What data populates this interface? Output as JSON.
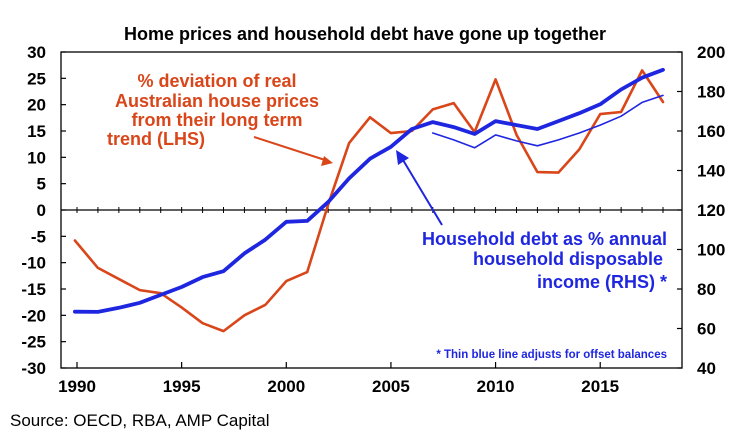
{
  "title": "Home prices and household debt have gone up together",
  "source": "Source: OECD, RBA, AMP Capital",
  "colors": {
    "red": "#D9461A",
    "blue": "#1F26E0",
    "axis": "#000000"
  },
  "chart_data": {
    "type": "line",
    "xlim": [
      1990,
      2018
    ],
    "x_ticks": [
      1990,
      1995,
      2000,
      2005,
      2010,
      2015
    ],
    "y_left": {
      "range": [
        -30,
        30
      ],
      "ticks": [
        -30,
        -25,
        -20,
        -15,
        -10,
        -5,
        0,
        5,
        10,
        15,
        20,
        25,
        30
      ]
    },
    "y_right": {
      "range": [
        40,
        200
      ],
      "ticks": [
        40,
        60,
        80,
        100,
        120,
        140,
        160,
        180,
        200
      ]
    },
    "series": [
      {
        "name": "% deviation of real Australian house prices from their long term trend (LHS)",
        "axis": "left",
        "color": "#D9461A",
        "x": [
          1989.9,
          1991,
          1993,
          1994,
          1995,
          1996,
          1997,
          1998,
          1999,
          2000,
          2001,
          2002,
          2003,
          2004,
          2005,
          2006,
          2007,
          2008,
          2009,
          2010,
          2011,
          2012,
          2013,
          2014,
          2015,
          2016,
          2017,
          2018
        ],
        "values": [
          -5.8,
          -11,
          -15.2,
          -15.8,
          -18.5,
          -21.5,
          -23,
          -20,
          -18,
          -13.5,
          -11.8,
          1,
          12.7,
          17.6,
          14.6,
          15,
          19.1,
          20.3,
          14.8,
          24.8,
          14.3,
          7.2,
          7.1,
          11.5,
          18.2,
          18.6,
          26.5,
          20.5
        ]
      },
      {
        "name": "Household debt as % annual household disposable income (RHS)",
        "axis": "right",
        "color": "#1F26E0",
        "x": [
          1989.9,
          1991,
          1992,
          1993,
          1994,
          1995,
          1996,
          1997,
          1998,
          1999,
          2000,
          2001,
          2002,
          2003,
          2004,
          2005,
          2006,
          2007,
          2008,
          2009,
          2010,
          2011,
          2012,
          2013,
          2014,
          2015,
          2016,
          2017,
          2018
        ],
        "values": [
          68.5,
          68.4,
          70.5,
          73,
          77,
          81,
          86,
          89,
          98,
          105,
          114,
          114.5,
          124,
          136,
          146,
          152,
          161,
          164.5,
          162,
          158.5,
          165,
          163,
          161,
          165,
          169,
          173.5,
          181,
          187,
          191
        ]
      },
      {
        "name": "Household debt adjusted for offset balances (RHS, thin)",
        "axis": "right",
        "color": "#1F26E0",
        "x": [
          2007,
          2008,
          2009,
          2010,
          2011,
          2012,
          2013,
          2014,
          2015,
          2016,
          2017,
          2018
        ],
        "values": [
          159,
          155.5,
          151.5,
          158,
          155,
          152.5,
          155.5,
          159,
          163,
          167.5,
          174.5,
          178
        ]
      }
    ],
    "annotations": {
      "red_label": [
        "% deviation of real",
        "Australian house prices",
        "from their long term",
        "trend (LHS)"
      ],
      "blue_label": [
        "Household debt as % annual",
        "household disposable",
        "income (RHS) *"
      ],
      "note": "* Thin blue line adjusts for offset balances"
    }
  }
}
